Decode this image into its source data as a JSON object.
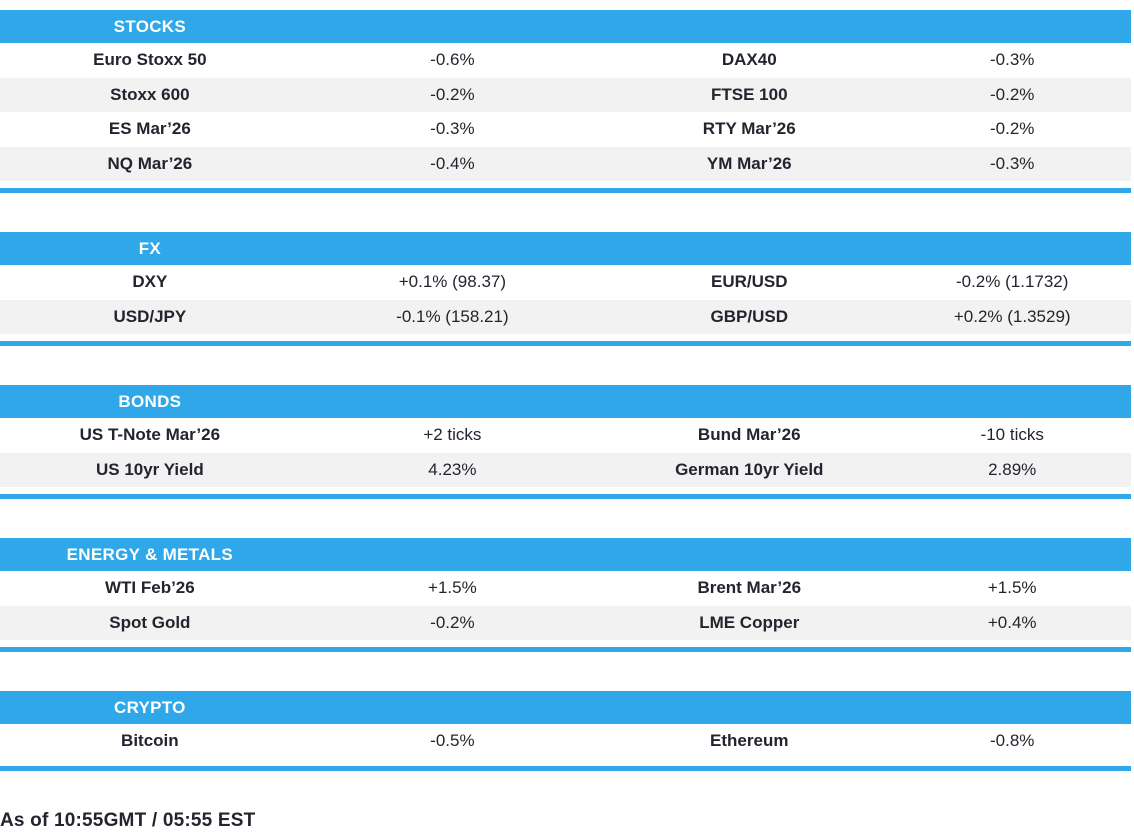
{
  "colors": {
    "accent": "#2FA7E9",
    "row_alt": "#F2F2F2",
    "text": "#22252E",
    "header_text": "#FFFFFF"
  },
  "meta": {
    "timestamp": "As of 10:55GMT / 05:55 EST"
  },
  "sections": [
    {
      "title": "STOCKS",
      "rows": [
        {
          "name1": "Euro Stoxx 50",
          "value1": "-0.6%",
          "name2": "DAX40",
          "value2": "-0.3%"
        },
        {
          "name1": "Stoxx 600",
          "value1": "-0.2%",
          "name2": "FTSE 100",
          "value2": "-0.2%"
        },
        {
          "name1": "ES Mar’26",
          "value1": "-0.3%",
          "name2": "RTY Mar’26",
          "value2": "-0.2%"
        },
        {
          "name1": "NQ Mar’26",
          "value1": "-0.4%",
          "name2": "YM Mar’26",
          "value2": "-0.3%"
        }
      ]
    },
    {
      "title": "FX",
      "rows": [
        {
          "name1": "DXY",
          "value1": "+0.1% (98.37)",
          "name2": "EUR/USD",
          "value2": "-0.2% (1.1732)"
        },
        {
          "name1": "USD/JPY",
          "value1": "-0.1% (158.21)",
          "name2": "GBP/USD",
          "value2": "+0.2% (1.3529)"
        }
      ]
    },
    {
      "title": "BONDS",
      "rows": [
        {
          "name1": "US T-Note Mar’26",
          "value1": "+2 ticks",
          "name2": "Bund Mar’26",
          "value2": "-10 ticks"
        },
        {
          "name1": "US 10yr Yield",
          "value1": "4.23%",
          "name2": "German 10yr Yield",
          "value2": "2.89%"
        }
      ]
    },
    {
      "title": "ENERGY & METALS",
      "rows": [
        {
          "name1": "WTI Feb’26",
          "value1": "+1.5%",
          "name2": "Brent Mar’26",
          "value2": "+1.5%"
        },
        {
          "name1": "Spot Gold",
          "value1": "-0.2%",
          "name2": "LME Copper",
          "value2": "+0.4%"
        }
      ]
    },
    {
      "title": "CRYPTO",
      "rows": [
        {
          "name1": "Bitcoin",
          "value1": "-0.5%",
          "name2": "Ethereum",
          "value2": "-0.8%"
        }
      ]
    }
  ]
}
